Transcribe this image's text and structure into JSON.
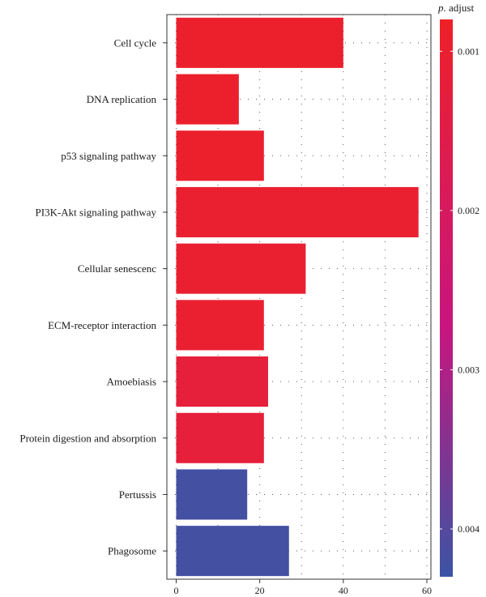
{
  "chart_data": {
    "type": "bar",
    "orientation": "horizontal",
    "categories": [
      "Cell cycle",
      "DNA replication",
      "p53 signaling pathway",
      "PI3K-Akt signaling pathway",
      "Cellular senescenc",
      "ECM-receptor interaction",
      "Amoebiasis",
      "Protein digestion and absorption",
      "Pertussis",
      "Phagosome"
    ],
    "values": [
      40,
      15,
      21,
      58,
      31,
      21,
      22,
      21,
      17,
      27
    ],
    "p_adjust": [
      0.0009,
      0.0009,
      0.0009,
      0.001,
      0.001,
      0.001,
      0.0012,
      0.0012,
      0.0042,
      0.0042
    ],
    "xlim": [
      0,
      60
    ],
    "x_ticks": [
      "0",
      "20",
      "40",
      "60"
    ],
    "grid": "dotted",
    "xlabel": "",
    "ylabel": "",
    "legend": {
      "title_italic": "p.",
      "title_rest": " adjust",
      "position": "right",
      "range": [
        0.0008,
        0.0043
      ],
      "ticks": [
        {
          "value": 0.001,
          "label": "0.001"
        },
        {
          "value": 0.002,
          "label": "0.002"
        },
        {
          "value": 0.003,
          "label": "0.003"
        },
        {
          "value": 0.004,
          "label": "0.004"
        }
      ],
      "colors": {
        "low": "#ee2128",
        "mid": "#c8157f",
        "high": "#3b54a4"
      }
    }
  }
}
